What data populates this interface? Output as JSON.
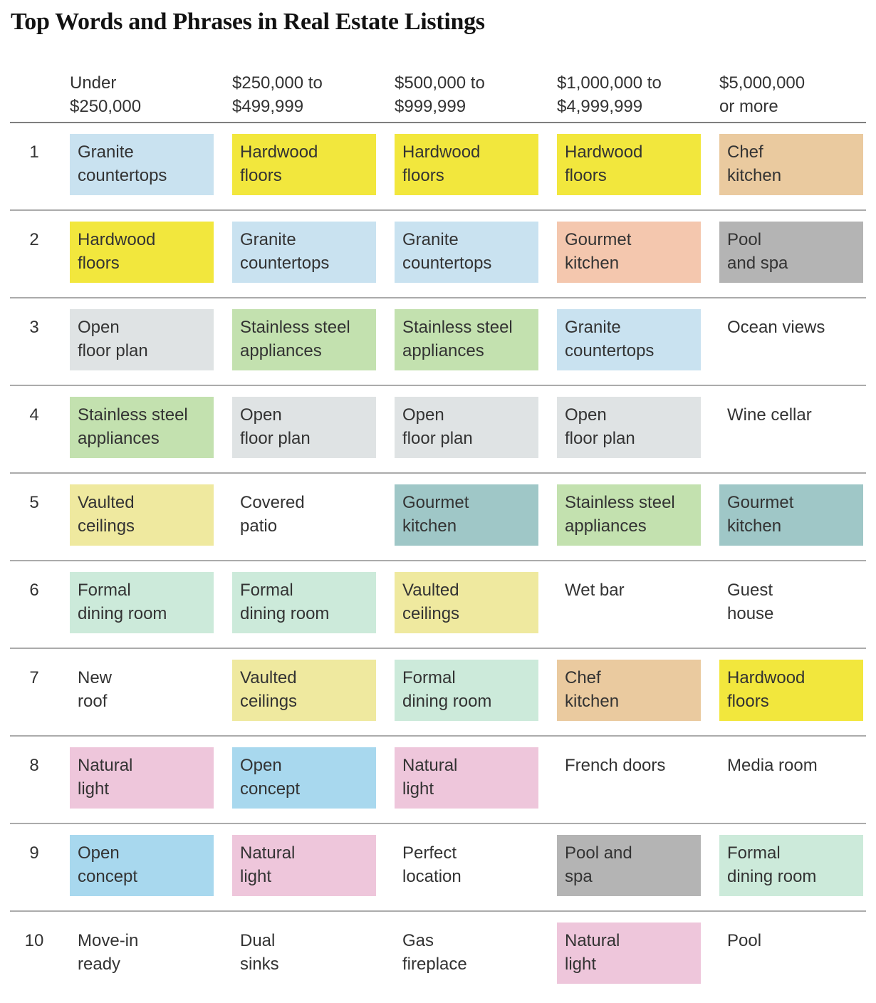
{
  "palette": {
    "blue": "#C9E2F0",
    "yellow": "#F2E73D",
    "tan": "#EACA9F",
    "salmon": "#F4C7AE",
    "gray": "#B4B4B4",
    "slate": "#DFE3E4",
    "green": "#C3E1AF",
    "teal": "#9FC7C7",
    "paleyellow": "#EFE99F",
    "mint": "#CCEADA",
    "pink": "#EEC6DB",
    "sky": "#A8D8EE",
    "none": "transparent"
  },
  "chart_data": {
    "type": "table",
    "title": "Top Words and Phrases in Real Estate Listings",
    "columns": [
      "Under\n$250,000",
      "$250,000 to\n$499,999",
      "$500,000 to\n$999,999",
      "$1,000,000 to\n$4,999,999",
      "$5,000,000\nor more"
    ],
    "rows": [
      {
        "rank": "1",
        "cells": [
          {
            "text": "Granite\ncountertops",
            "color": "blue"
          },
          {
            "text": "Hardwood\nfloors",
            "color": "yellow"
          },
          {
            "text": "Hardwood\nfloors",
            "color": "yellow"
          },
          {
            "text": "Hardwood\nfloors",
            "color": "yellow"
          },
          {
            "text": "Chef\nkitchen",
            "color": "tan"
          }
        ]
      },
      {
        "rank": "2",
        "cells": [
          {
            "text": "Hardwood\nfloors",
            "color": "yellow"
          },
          {
            "text": "Granite\ncountertops",
            "color": "blue"
          },
          {
            "text": "Granite\ncountertops",
            "color": "blue"
          },
          {
            "text": "Gourmet\nkitchen",
            "color": "salmon"
          },
          {
            "text": "Pool\nand spa",
            "color": "gray"
          }
        ]
      },
      {
        "rank": "3",
        "cells": [
          {
            "text": "Open\nfloor plan",
            "color": "slate"
          },
          {
            "text": "Stainless steel\nappliances",
            "color": "green"
          },
          {
            "text": "Stainless steel\nappliances",
            "color": "green"
          },
          {
            "text": "Granite\ncountertops",
            "color": "blue"
          },
          {
            "text": "Ocean views",
            "color": "none"
          }
        ]
      },
      {
        "rank": "4",
        "cells": [
          {
            "text": "Stainless steel\nappliances",
            "color": "green"
          },
          {
            "text": "Open\nfloor plan",
            "color": "slate"
          },
          {
            "text": "Open\nfloor plan",
            "color": "slate"
          },
          {
            "text": "Open\nfloor plan",
            "color": "slate"
          },
          {
            "text": "Wine cellar",
            "color": "none"
          }
        ]
      },
      {
        "rank": "5",
        "cells": [
          {
            "text": "Vaulted\nceilings",
            "color": "paleyellow"
          },
          {
            "text": "Covered\npatio",
            "color": "none"
          },
          {
            "text": "Gourmet\nkitchen",
            "color": "teal"
          },
          {
            "text": "Stainless steel\nappliances",
            "color": "green"
          },
          {
            "text": "Gourmet\nkitchen",
            "color": "teal"
          }
        ]
      },
      {
        "rank": "6",
        "cells": [
          {
            "text": "Formal\ndining room",
            "color": "mint"
          },
          {
            "text": "Formal\ndining room",
            "color": "mint"
          },
          {
            "text": "Vaulted\nceilings",
            "color": "paleyellow"
          },
          {
            "text": "Wet bar",
            "color": "none"
          },
          {
            "text": "Guest\nhouse",
            "color": "none"
          }
        ]
      },
      {
        "rank": "7",
        "cells": [
          {
            "text": "New\nroof",
            "color": "none"
          },
          {
            "text": "Vaulted\nceilings",
            "color": "paleyellow"
          },
          {
            "text": "Formal\ndining room",
            "color": "mint"
          },
          {
            "text": "Chef\nkitchen",
            "color": "tan"
          },
          {
            "text": "Hardwood\nfloors",
            "color": "yellow"
          }
        ]
      },
      {
        "rank": "8",
        "cells": [
          {
            "text": "Natural\nlight",
            "color": "pink"
          },
          {
            "text": "Open\nconcept",
            "color": "sky"
          },
          {
            "text": "Natural\nlight",
            "color": "pink"
          },
          {
            "text": "French doors",
            "color": "none"
          },
          {
            "text": "Media room",
            "color": "none"
          }
        ]
      },
      {
        "rank": "9",
        "cells": [
          {
            "text": "Open\nconcept",
            "color": "sky"
          },
          {
            "text": "Natural\nlight",
            "color": "pink"
          },
          {
            "text": "Perfect\nlocation",
            "color": "none"
          },
          {
            "text": "Pool and\nspa",
            "color": "gray"
          },
          {
            "text": "Formal\ndining room",
            "color": "mint"
          }
        ]
      },
      {
        "rank": "10",
        "cells": [
          {
            "text": "Move-in\nready",
            "color": "none"
          },
          {
            "text": "Dual\nsinks",
            "color": "none"
          },
          {
            "text": "Gas\nfireplace",
            "color": "none"
          },
          {
            "text": "Natural\nlight",
            "color": "pink"
          },
          {
            "text": "Pool",
            "color": "none"
          }
        ]
      }
    ]
  }
}
